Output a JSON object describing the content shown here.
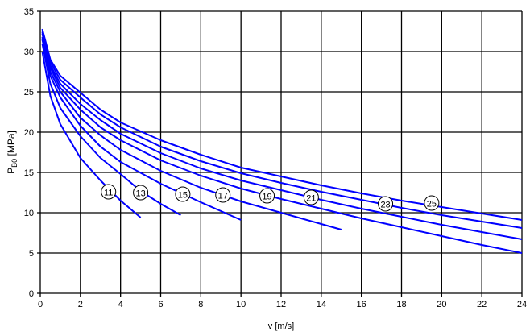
{
  "chart_data": {
    "type": "line",
    "title": "",
    "xlabel": "v [m/s]",
    "ylabel_main": "P",
    "ylabel_sub": "B0",
    "ylabel_unit": " [MPa]",
    "xlim": [
      0,
      24
    ],
    "ylim": [
      0,
      35
    ],
    "xticks": [
      0,
      2,
      4,
      6,
      8,
      10,
      12,
      14,
      16,
      18,
      20,
      22,
      24
    ],
    "yticks": [
      0,
      5,
      10,
      15,
      20,
      25,
      30,
      35
    ],
    "grid": true,
    "line_color": "#0000ff",
    "series": [
      {
        "label": "11",
        "label_at": [
          3.4,
          12.6
        ],
        "x": [
          0.1,
          0.5,
          1,
          2,
          3,
          4,
          5
        ],
        "y": [
          30,
          24.5,
          21,
          16.8,
          14.0,
          11.5,
          9.4
        ]
      },
      {
        "label": "13",
        "label_at": [
          5.0,
          12.5
        ],
        "x": [
          0.1,
          0.5,
          1,
          2,
          3,
          4,
          5,
          6,
          7
        ],
        "y": [
          31,
          26,
          23,
          19.5,
          16.8,
          14.8,
          12.7,
          11.1,
          9.7
        ]
      },
      {
        "label": "15",
        "label_at": [
          7.1,
          12.3
        ],
        "x": [
          0.1,
          0.5,
          1,
          2,
          3,
          4,
          6,
          8,
          10
        ],
        "y": [
          31.5,
          27,
          24.3,
          20.8,
          18.2,
          16.3,
          13.6,
          11.3,
          9.1
        ]
      },
      {
        "label": "17",
        "label_at": [
          9.1,
          12.2
        ],
        "x": [
          0.1,
          0.5,
          1,
          2,
          3,
          4,
          6,
          8,
          10,
          12,
          14,
          15
        ],
        "y": [
          31.8,
          27.5,
          25,
          21.8,
          19.6,
          17.8,
          15.2,
          13.1,
          11.4,
          10.0,
          8.6,
          7.9
        ]
      },
      {
        "label": "19",
        "label_at": [
          11.3,
          12.1
        ],
        "x": [
          0.1,
          0.5,
          1,
          2,
          3,
          4,
          6,
          8,
          10,
          12,
          14,
          16,
          18,
          20,
          22,
          24
        ],
        "y": [
          32.2,
          28,
          25.5,
          22.8,
          20.6,
          19.0,
          16.5,
          14.6,
          13.0,
          11.7,
          10.5,
          9.3,
          8.2,
          7.1,
          6.0,
          5.0
        ]
      },
      {
        "label": "21",
        "label_at": [
          13.5,
          11.9
        ],
        "x": [
          0.1,
          0.5,
          1,
          2,
          3,
          4,
          6,
          8,
          10,
          12,
          14,
          16,
          18,
          20,
          22,
          24
        ],
        "y": [
          32.4,
          28.3,
          26,
          23.5,
          21.5,
          19.8,
          17.4,
          15.5,
          14.0,
          12.8,
          11.6,
          10.5,
          9.5,
          8.5,
          7.6,
          6.7
        ]
      },
      {
        "label": "23",
        "label_at": [
          17.2,
          11.1
        ],
        "x": [
          0.1,
          0.5,
          1,
          2,
          3,
          4,
          6,
          8,
          10,
          12,
          14,
          16,
          18,
          20,
          22,
          24
        ],
        "y": [
          32.6,
          28.7,
          26.5,
          24.3,
          22.2,
          20.6,
          18.2,
          16.4,
          14.9,
          13.7,
          12.6,
          11.6,
          10.6,
          9.7,
          8.9,
          8.1
        ]
      },
      {
        "label": "25",
        "label_at": [
          19.5,
          11.2
        ],
        "x": [
          0.1,
          0.5,
          1,
          2,
          3,
          4,
          6,
          8,
          10,
          12,
          14,
          16,
          18,
          20,
          22,
          24
        ],
        "y": [
          32.8,
          29,
          27,
          24.9,
          22.8,
          21.2,
          19.0,
          17.2,
          15.6,
          14.5,
          13.4,
          12.4,
          11.5,
          10.7,
          9.9,
          9.1
        ]
      }
    ]
  }
}
